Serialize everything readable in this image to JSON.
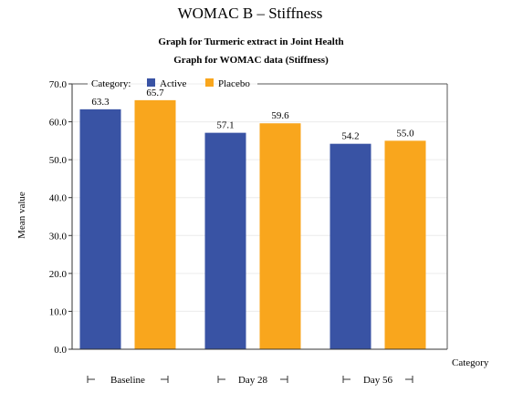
{
  "chart_data": {
    "type": "bar",
    "title": "WOMAC B – Stiffness",
    "subtitle_1": "Graph for Turmeric extract in Joint Health",
    "subtitle_2": "Graph for WOMAC data (Stiffness)",
    "xlabel": "Category",
    "ylabel": "Mean value",
    "ylim": [
      0,
      70
    ],
    "yticks": [
      "0.0",
      "10.0",
      "20.0",
      "30.0",
      "40.0",
      "50.0",
      "60.0",
      "70.0"
    ],
    "grid": true,
    "legend_title": "Category:",
    "legend_placement": "top-left",
    "categories": [
      "Baseline",
      "Day 28",
      "Day 56"
    ],
    "series": [
      {
        "name": "Active",
        "color": "#3953a4",
        "values": [
          63.3,
          57.1,
          54.2
        ],
        "labels": [
          "63.3",
          "57.1",
          "54.2"
        ]
      },
      {
        "name": "Placebo",
        "color": "#f9a61d",
        "values": [
          65.7,
          59.6,
          55.0
        ],
        "labels": [
          "65.7",
          "59.6",
          "55.0"
        ]
      }
    ]
  }
}
